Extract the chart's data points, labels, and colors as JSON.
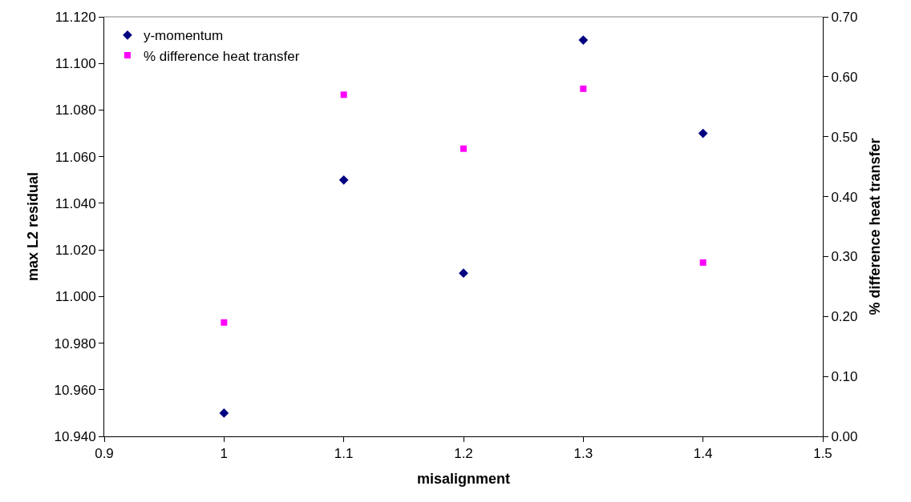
{
  "chart_data": {
    "type": "scatter",
    "xlabel": "misalignment",
    "ylabel": "max L2 residual",
    "y2label": "% difference heat transfer",
    "x": [
      1,
      1.1,
      1.2,
      1.3,
      1.4
    ],
    "series": [
      {
        "name": "y-momentum",
        "color": "#000080",
        "marker": "diamond",
        "values": [
          10.95,
          11.05,
          11.01,
          11.11,
          11.07
        ]
      },
      {
        "name": "% difference heat transfer",
        "color": "#ff00ff",
        "marker": "square",
        "axis": "y2",
        "values": [
          0.19,
          0.57,
          0.48,
          0.58,
          0.29
        ]
      }
    ],
    "xlim": [
      0.9,
      1.5
    ],
    "xticks": [
      0.9,
      1,
      1.1,
      1.2,
      1.3,
      1.4,
      1.5
    ],
    "ylim": [
      10.94,
      11.12
    ],
    "yticks": [
      {
        "value": 10.94,
        "label": "10.940"
      },
      {
        "value": 10.96,
        "label": "10.960"
      },
      {
        "value": 10.98,
        "label": "10.980"
      },
      {
        "value": 11.0,
        "label": "11.000"
      },
      {
        "value": 11.02,
        "label": "11.020"
      },
      {
        "value": 11.04,
        "label": "11.040"
      },
      {
        "value": 11.06,
        "label": "11.060"
      },
      {
        "value": 11.08,
        "label": "11.080"
      },
      {
        "value": 11.1,
        "label": "11.100"
      },
      {
        "value": 11.12,
        "label": "11.120"
      }
    ],
    "y2lim": [
      0,
      0.7
    ],
    "y2ticks": [
      {
        "value": 0,
        "label": "0.00"
      },
      {
        "value": 0.1,
        "label": "0.10"
      },
      {
        "value": 0.2,
        "label": "0.20"
      },
      {
        "value": 0.3,
        "label": "0.30"
      },
      {
        "value": 0.4,
        "label": "0.40"
      },
      {
        "value": 0.5,
        "label": "0.50"
      },
      {
        "value": 0.6,
        "label": "0.60"
      },
      {
        "value": 0.7,
        "label": "0.70"
      }
    ],
    "grid": false,
    "legend": "top left"
  }
}
